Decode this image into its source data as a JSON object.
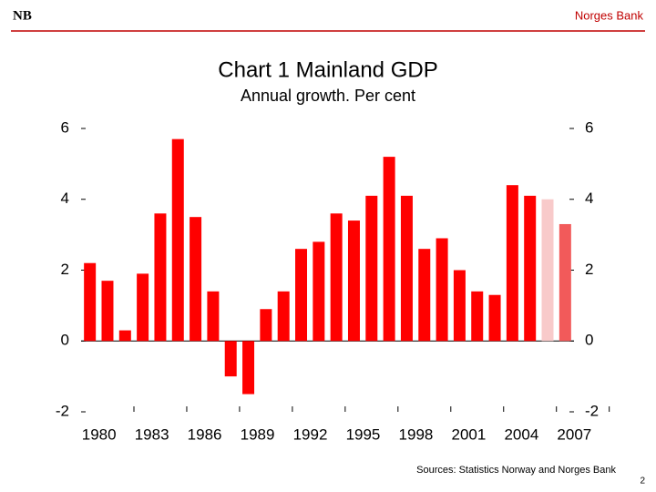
{
  "header": {
    "logo": "NB",
    "organization": "Norges Bank"
  },
  "footer": {
    "sources": "Sources: Statistics Norway and Norges Bank",
    "page": "2"
  },
  "chart_data": {
    "type": "bar",
    "title": "Chart 1 Mainland GDP",
    "subtitle": "Annual growth. Per cent",
    "categories": [
      "1980",
      null,
      null,
      "1983",
      null,
      null,
      "1986",
      null,
      null,
      "1989",
      null,
      null,
      "1992",
      null,
      null,
      "1995",
      null,
      null,
      "1998",
      null,
      null,
      "2001",
      null,
      null,
      "2004",
      null,
      null,
      "2007"
    ],
    "values": [
      2.2,
      1.7,
      0.3,
      1.9,
      3.6,
      5.7,
      3.5,
      1.4,
      -1.0,
      -1.5,
      0.9,
      1.4,
      2.6,
      2.8,
      3.6,
      3.4,
      4.1,
      5.2,
      4.1,
      2.6,
      2.9,
      2.0,
      1.4,
      1.3,
      4.4,
      4.1,
      4.0,
      3.3
    ],
    "colors": [
      "#ff0000",
      "#ff0000",
      "#ff0000",
      "#ff0000",
      "#ff0000",
      "#ff0000",
      "#ff0000",
      "#ff0000",
      "#ff0000",
      "#ff0000",
      "#ff0000",
      "#ff0000",
      "#ff0000",
      "#ff0000",
      "#ff0000",
      "#ff0000",
      "#ff0000",
      "#ff0000",
      "#ff0000",
      "#ff0000",
      "#ff0000",
      "#ff0000",
      "#ff0000",
      "#ff0000",
      "#ff0000",
      "#ff0000",
      "#f8caca",
      "#f25a5a"
    ],
    "ylim": [
      -2,
      6
    ],
    "yticks": [
      -2,
      0,
      2,
      4,
      6
    ],
    "y2lim": [
      -2,
      6
    ],
    "y2ticks": [
      -2,
      0,
      2,
      4,
      6
    ]
  }
}
